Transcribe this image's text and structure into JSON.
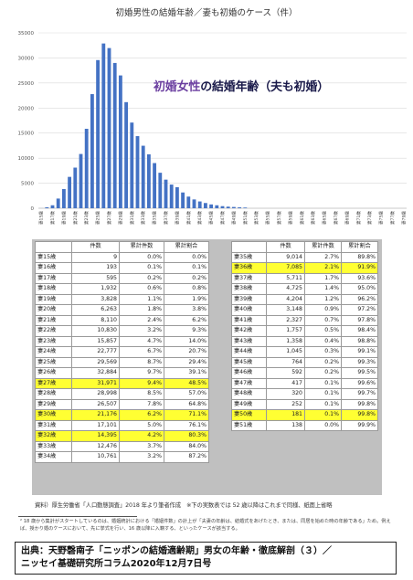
{
  "chart_data": {
    "type": "bar",
    "title": "初婚男性の結婚年齢／妻も初婚のケース（件）",
    "overlay_title": {
      "part1": "初婚女性",
      "part2": "の結婚年齢（夫も初婚）"
    },
    "ylim": [
      0,
      35000
    ],
    "yticks": [
      0,
      5000,
      10000,
      15000,
      20000,
      25000,
      30000,
      35000
    ],
    "color": "#4472c4",
    "grid": true,
    "categories": [
      "妻15歳",
      "妻16歳",
      "妻17歳",
      "妻18歳",
      "妻19歳",
      "妻20歳",
      "妻21歳",
      "妻22歳",
      "妻23歳",
      "妻24歳",
      "妻25歳",
      "妻26歳",
      "妻27歳",
      "妻28歳",
      "妻29歳",
      "妻30歳",
      "妻31歳",
      "妻32歳",
      "妻33歳",
      "妻34歳",
      "妻35歳",
      "妻36歳",
      "妻37歳",
      "妻38歳",
      "妻39歳",
      "妻40歳",
      "妻41歳",
      "妻42歳",
      "妻43歳",
      "妻44歳",
      "妻45歳",
      "妻46歳",
      "妻47歳",
      "妻48歳",
      "妻49歳",
      "妻50歳",
      "妻51歳",
      "妻52歳",
      "妻53歳",
      "妻54歳",
      "妻55歳",
      "妻56歳",
      "妻57歳",
      "妻58歳",
      "妻59歳",
      "妻60歳",
      "妻61歳",
      "妻62歳",
      "妻63歳",
      "妻64歳",
      "妻65歳",
      "妻66歳",
      "妻67歳",
      "妻68歳",
      "妻69歳",
      "妻70歳",
      "妻71歳",
      "妻72歳",
      "妻73歳",
      "妻74歳",
      "妻75歳",
      "妻76歳",
      "妻77歳",
      "妻78歳",
      "妻79歳"
    ],
    "values": [
      9,
      193,
      595,
      1932,
      3828,
      6263,
      8110,
      10830,
      15857,
      22777,
      29569,
      32884,
      31971,
      28998,
      26507,
      21176,
      17101,
      14395,
      12476,
      10761,
      9014,
      7085,
      5711,
      4725,
      4204,
      3148,
      2327,
      1757,
      1358,
      1045,
      764,
      592,
      417,
      320,
      252,
      181,
      138,
      0,
      0,
      0,
      0,
      0,
      0,
      0,
      0,
      0,
      0,
      0,
      0,
      0,
      0,
      0,
      0,
      0,
      0,
      0,
      0,
      0,
      0,
      0,
      0,
      0,
      0,
      0,
      0
    ]
  },
  "tables": {
    "headers": [
      "件数",
      "累計件数",
      "累計割合"
    ],
    "left_rows": [
      {
        "age": "妻15歳",
        "count": "9",
        "cum_pct": "0.0%",
        "cum_share": "0.0%",
        "hl": false
      },
      {
        "age": "妻16歳",
        "count": "193",
        "cum_pct": "0.1%",
        "cum_share": "0.1%",
        "hl": false
      },
      {
        "age": "妻17歳",
        "count": "595",
        "cum_pct": "0.2%",
        "cum_share": "0.2%",
        "hl": false
      },
      {
        "age": "妻18歳",
        "count": "1,932",
        "cum_pct": "0.6%",
        "cum_share": "0.8%",
        "hl": false
      },
      {
        "age": "妻19歳",
        "count": "3,828",
        "cum_pct": "1.1%",
        "cum_share": "1.9%",
        "hl": false
      },
      {
        "age": "妻20歳",
        "count": "6,263",
        "cum_pct": "1.8%",
        "cum_share": "3.8%",
        "hl": false
      },
      {
        "age": "妻21歳",
        "count": "8,110",
        "cum_pct": "2.4%",
        "cum_share": "6.2%",
        "hl": false
      },
      {
        "age": "妻22歳",
        "count": "10,830",
        "cum_pct": "3.2%",
        "cum_share": "9.3%",
        "hl": false
      },
      {
        "age": "妻23歳",
        "count": "15,857",
        "cum_pct": "4.7%",
        "cum_share": "14.0%",
        "hl": false
      },
      {
        "age": "妻24歳",
        "count": "22,777",
        "cum_pct": "6.7%",
        "cum_share": "20.7%",
        "hl": false
      },
      {
        "age": "妻25歳",
        "count": "29,569",
        "cum_pct": "8.7%",
        "cum_share": "29.4%",
        "hl": false
      },
      {
        "age": "妻26歳",
        "count": "32,884",
        "cum_pct": "9.7%",
        "cum_share": "39.1%",
        "hl": false
      },
      {
        "age": "妻27歳",
        "count": "31,971",
        "cum_pct": "9.4%",
        "cum_share": "48.5%",
        "hl": true
      },
      {
        "age": "妻28歳",
        "count": "28,998",
        "cum_pct": "8.5%",
        "cum_share": "57.0%",
        "hl": false
      },
      {
        "age": "妻29歳",
        "count": "26,507",
        "cum_pct": "7.8%",
        "cum_share": "64.8%",
        "hl": false
      },
      {
        "age": "妻30歳",
        "count": "21,176",
        "cum_pct": "6.2%",
        "cum_share": "71.1%",
        "hl": true
      },
      {
        "age": "妻31歳",
        "count": "17,101",
        "cum_pct": "5.0%",
        "cum_share": "76.1%",
        "hl": false
      },
      {
        "age": "妻32歳",
        "count": "14,395",
        "cum_pct": "4.2%",
        "cum_share": "80.3%",
        "hl": true
      },
      {
        "age": "妻33歳",
        "count": "12,476",
        "cum_pct": "3.7%",
        "cum_share": "84.0%",
        "hl": false
      },
      {
        "age": "妻34歳",
        "count": "10,761",
        "cum_pct": "3.2%",
        "cum_share": "87.2%",
        "hl": false
      }
    ],
    "right_rows": [
      {
        "age": "妻35歳",
        "count": "9,014",
        "cum_pct": "2.7%",
        "cum_share": "89.8%",
        "hl": false
      },
      {
        "age": "妻36歳",
        "count": "7,085",
        "cum_pct": "2.1%",
        "cum_share": "91.9%",
        "hl": true
      },
      {
        "age": "妻37歳",
        "count": "5,711",
        "cum_pct": "1.7%",
        "cum_share": "93.6%",
        "hl": false
      },
      {
        "age": "妻38歳",
        "count": "4,725",
        "cum_pct": "1.4%",
        "cum_share": "95.0%",
        "hl": false
      },
      {
        "age": "妻39歳",
        "count": "4,204",
        "cum_pct": "1.2%",
        "cum_share": "96.2%",
        "hl": false
      },
      {
        "age": "妻40歳",
        "count": "3,148",
        "cum_pct": "0.9%",
        "cum_share": "97.2%",
        "hl": false
      },
      {
        "age": "妻41歳",
        "count": "2,327",
        "cum_pct": "0.7%",
        "cum_share": "97.8%",
        "hl": false
      },
      {
        "age": "妻42歳",
        "count": "1,757",
        "cum_pct": "0.5%",
        "cum_share": "98.4%",
        "hl": false
      },
      {
        "age": "妻43歳",
        "count": "1,358",
        "cum_pct": "0.4%",
        "cum_share": "98.8%",
        "hl": false
      },
      {
        "age": "妻44歳",
        "count": "1,045",
        "cum_pct": "0.3%",
        "cum_share": "99.1%",
        "hl": false
      },
      {
        "age": "妻45歳",
        "count": "764",
        "cum_pct": "0.2%",
        "cum_share": "99.3%",
        "hl": false
      },
      {
        "age": "妻46歳",
        "count": "592",
        "cum_pct": "0.2%",
        "cum_share": "99.5%",
        "hl": false
      },
      {
        "age": "妻47歳",
        "count": "417",
        "cum_pct": "0.1%",
        "cum_share": "99.6%",
        "hl": false
      },
      {
        "age": "妻48歳",
        "count": "320",
        "cum_pct": "0.1%",
        "cum_share": "99.7%",
        "hl": false
      },
      {
        "age": "妻49歳",
        "count": "252",
        "cum_pct": "0.1%",
        "cum_share": "99.8%",
        "hl": false
      },
      {
        "age": "妻50歳",
        "count": "181",
        "cum_pct": "0.1%",
        "cum_share": "99.8%",
        "hl": true
      },
      {
        "age": "妻51歳",
        "count": "138",
        "cum_pct": "0.0%",
        "cum_share": "99.9%",
        "hl": false
      }
    ]
  },
  "source_note": "資料）厚生労働省「人口動態調査」2018 年より筆者作成　※下の実数表では 52 歳以降はこれまで同様、紙面上省略",
  "footnote": "² 18 歳から集計がスタートしているのは、婚姻統計における「婚姻件数」の計上が「夫妻の年齢は、結婚式をあげたとき、または、同居を始めた時の年齢である」ため。例えば、授かり婚のケースにおいて、先に挙式を行い、16 歳以降に入籍する、といったケースが該当する。",
  "citation": {
    "line1": "出典：天野磬南子「ニッポンの結婚適齢期」男女の年齢・徹底解剖（３）／",
    "line2": "ニッセイ基礎研究所コラム2020年12月7日号"
  }
}
